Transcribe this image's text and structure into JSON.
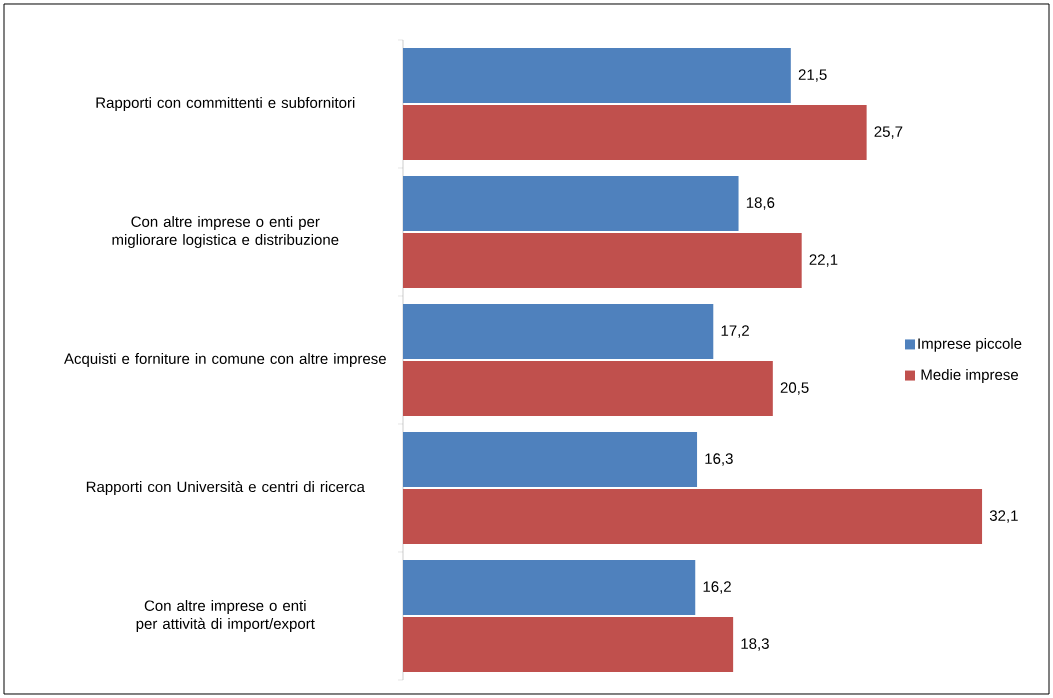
{
  "chart_data": {
    "type": "bar",
    "orientation": "horizontal",
    "categories": [
      "Rapporti con committenti e subfornitori",
      "Con altre imprese o enti per migliorare logistica e distribuzione",
      "Acquisti e forniture in comune con altre imprese",
      "Rapporti con Università e centri di ricerca",
      "Con altre imprese o enti per attività di import/export"
    ],
    "series": [
      {
        "name": "Imprese piccole",
        "color": "#4f81bd",
        "values": [
          21.5,
          18.6,
          17.2,
          16.3,
          16.2
        ],
        "value_labels": [
          "21,5",
          "18,6",
          "17,2",
          "16,3",
          "16,2"
        ]
      },
      {
        "name": "Medie imprese",
        "color": "#c0504d",
        "values": [
          25.7,
          22.1,
          20.5,
          32.1,
          18.3
        ],
        "value_labels": [
          "25,7",
          "22,1",
          "20,5",
          "32,1",
          "18,3"
        ]
      }
    ],
    "legend": "right"
  }
}
